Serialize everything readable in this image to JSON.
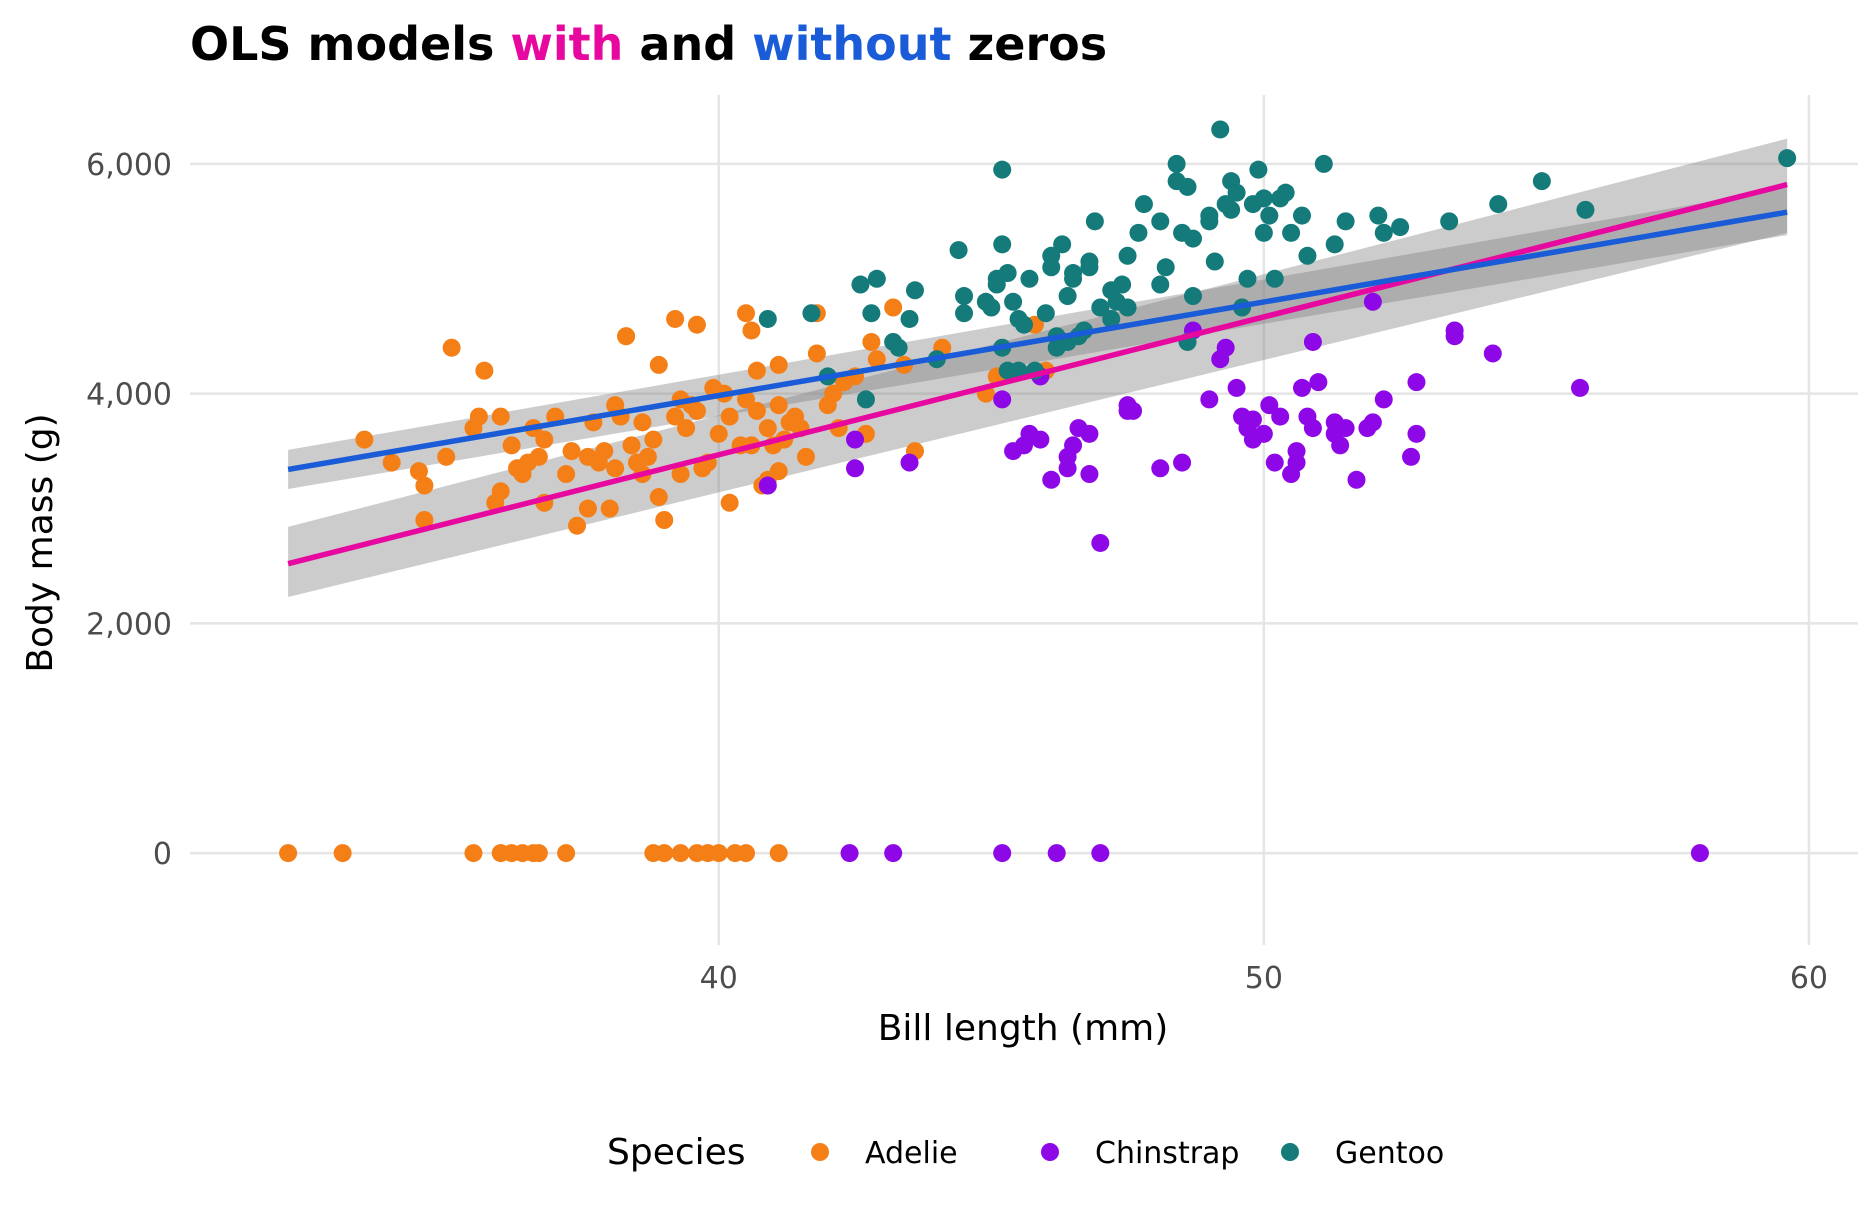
{
  "chart_data": {
    "type": "scatter",
    "title": {
      "segments": [
        {
          "text": "OLS",
          "color": "#000000"
        },
        {
          "text": "models",
          "color": "#000000"
        },
        {
          "text": "with",
          "color": "#E7099F"
        },
        {
          "text": "and",
          "color": "#000000"
        },
        {
          "text": "without",
          "color": "#1A5CD8"
        },
        {
          "text": "zeros",
          "color": "#000000"
        }
      ]
    },
    "xlabel": "Bill length (mm)",
    "ylabel": "Body mass (g)",
    "xlim": [
      30.3,
      60.9
    ],
    "ylim": [
      -800,
      6600
    ],
    "x_ticks": [
      40,
      50,
      60
    ],
    "x_tick_labels": [
      "40",
      "50",
      "60"
    ],
    "y_ticks": [
      0,
      2000,
      4000,
      6000
    ],
    "y_tick_labels": [
      "0",
      "2,000",
      "4,000",
      "6,000"
    ],
    "grid": true,
    "legend": {
      "title": "Species",
      "position": "bottom",
      "entries": [
        {
          "label": "Adelie",
          "color": "#F57F17"
        },
        {
          "label": "Chinstrap",
          "color": "#8E07E7"
        },
        {
          "label": "Gentoo",
          "color": "#147A7A"
        }
      ]
    },
    "series": [
      {
        "name": "Adelie",
        "color": "#F57F17",
        "points": [
          [
            32.1,
            0
          ],
          [
            33.1,
            0
          ],
          [
            35.5,
            0
          ],
          [
            36.0,
            0
          ],
          [
            36.2,
            0
          ],
          [
            36.4,
            0
          ],
          [
            36.6,
            0
          ],
          [
            36.7,
            0
          ],
          [
            37.2,
            0
          ],
          [
            38.8,
            0
          ],
          [
            39.0,
            0
          ],
          [
            39.3,
            0
          ],
          [
            39.6,
            0
          ],
          [
            39.8,
            0
          ],
          [
            40.0,
            0
          ],
          [
            40.3,
            0
          ],
          [
            40.5,
            0
          ],
          [
            41.1,
            0
          ],
          [
            33.5,
            3600
          ],
          [
            34.0,
            3400
          ],
          [
            34.5,
            3325
          ],
          [
            34.6,
            2900
          ],
          [
            34.6,
            3200
          ],
          [
            35.0,
            3450
          ],
          [
            35.1,
            4400
          ],
          [
            35.5,
            3700
          ],
          [
            35.6,
            3800
          ],
          [
            35.7,
            4200
          ],
          [
            35.9,
            3050
          ],
          [
            36.0,
            3800
          ],
          [
            36.0,
            3150
          ],
          [
            36.2,
            3550
          ],
          [
            36.3,
            3350
          ],
          [
            36.5,
            3400
          ],
          [
            36.6,
            3700
          ],
          [
            36.7,
            3450
          ],
          [
            36.8,
            3600
          ],
          [
            36.8,
            3050
          ],
          [
            37.0,
            3800
          ],
          [
            37.2,
            3300
          ],
          [
            37.3,
            3500
          ],
          [
            37.4,
            2850
          ],
          [
            37.6,
            3450
          ],
          [
            37.7,
            3750
          ],
          [
            37.8,
            3400
          ],
          [
            37.9,
            3500
          ],
          [
            38.0,
            3000
          ],
          [
            38.1,
            3900
          ],
          [
            38.2,
            3800
          ],
          [
            38.3,
            4500
          ],
          [
            38.4,
            3550
          ],
          [
            38.5,
            3400
          ],
          [
            38.6,
            3750
          ],
          [
            38.6,
            3300
          ],
          [
            38.7,
            3450
          ],
          [
            38.8,
            3600
          ],
          [
            38.9,
            4250
          ],
          [
            38.9,
            3100
          ],
          [
            39.0,
            2900
          ],
          [
            39.2,
            3800
          ],
          [
            39.3,
            3950
          ],
          [
            39.4,
            3700
          ],
          [
            39.5,
            3900
          ],
          [
            39.6,
            3850
          ],
          [
            39.7,
            3350
          ],
          [
            39.8,
            3400
          ],
          [
            40.0,
            3650
          ],
          [
            40.1,
            4000
          ],
          [
            40.2,
            3800
          ],
          [
            40.2,
            3050
          ],
          [
            40.4,
            3550
          ],
          [
            40.5,
            3950
          ],
          [
            40.6,
            4550
          ],
          [
            40.6,
            3550
          ],
          [
            40.7,
            4200
          ],
          [
            40.8,
            3200
          ],
          [
            40.9,
            3700
          ],
          [
            41.0,
            3550
          ],
          [
            41.1,
            4250
          ],
          [
            41.1,
            3900
          ],
          [
            41.2,
            3600
          ],
          [
            41.3,
            3750
          ],
          [
            41.4,
            3800
          ],
          [
            41.5,
            3700
          ],
          [
            41.6,
            3450
          ],
          [
            41.8,
            4350
          ],
          [
            42.0,
            3900
          ],
          [
            42.1,
            4000
          ],
          [
            42.2,
            3700
          ],
          [
            42.3,
            4100
          ],
          [
            42.5,
            4150
          ],
          [
            42.7,
            3650
          ],
          [
            42.8,
            4450
          ],
          [
            42.9,
            4300
          ],
          [
            43.2,
            4750
          ],
          [
            43.4,
            4250
          ],
          [
            43.6,
            3500
          ],
          [
            44.1,
            4400
          ],
          [
            44.9,
            4000
          ],
          [
            45.1,
            4150
          ],
          [
            45.8,
            4600
          ],
          [
            46.0,
            4200
          ],
          [
            39.6,
            4600
          ],
          [
            38.3,
            4500
          ],
          [
            41.8,
            4700
          ],
          [
            40.5,
            4700
          ],
          [
            39.2,
            4650
          ],
          [
            39.9,
            4050
          ],
          [
            40.7,
            3850
          ],
          [
            37.6,
            3000
          ],
          [
            36.4,
            3300
          ],
          [
            38.1,
            3350
          ],
          [
            41.1,
            3325
          ],
          [
            40.9,
            3250
          ],
          [
            39.3,
            3300
          ]
        ]
      },
      {
        "name": "Chinstrap",
        "color": "#8E07E7",
        "points": [
          [
            42.4,
            0
          ],
          [
            43.2,
            0
          ],
          [
            45.2,
            0
          ],
          [
            46.2,
            0
          ],
          [
            47.0,
            0
          ],
          [
            58.0,
            0
          ],
          [
            40.9,
            3200
          ],
          [
            42.5,
            3350
          ],
          [
            42.5,
            3600
          ],
          [
            43.5,
            3400
          ],
          [
            45.2,
            3950
          ],
          [
            45.4,
            3500
          ],
          [
            45.6,
            3550
          ],
          [
            45.7,
            3650
          ],
          [
            45.9,
            3600
          ],
          [
            46.1,
            3250
          ],
          [
            46.4,
            3450
          ],
          [
            46.5,
            3550
          ],
          [
            46.6,
            3700
          ],
          [
            46.8,
            3300
          ],
          [
            46.8,
            3650
          ],
          [
            47.0,
            2700
          ],
          [
            47.5,
            3900
          ],
          [
            47.6,
            3850
          ],
          [
            48.1,
            3350
          ],
          [
            48.5,
            3400
          ],
          [
            48.7,
            4550
          ],
          [
            49.0,
            3950
          ],
          [
            49.2,
            4300
          ],
          [
            49.5,
            4050
          ],
          [
            49.6,
            3800
          ],
          [
            49.7,
            3700
          ],
          [
            49.8,
            3600
          ],
          [
            50.0,
            3650
          ],
          [
            50.1,
            3900
          ],
          [
            50.2,
            3400
          ],
          [
            50.3,
            3800
          ],
          [
            50.5,
            3300
          ],
          [
            50.6,
            3400
          ],
          [
            50.7,
            4050
          ],
          [
            50.8,
            3800
          ],
          [
            50.9,
            3700
          ],
          [
            51.0,
            4100
          ],
          [
            51.3,
            3650
          ],
          [
            51.5,
            3700
          ],
          [
            51.7,
            3250
          ],
          [
            52.0,
            3750
          ],
          [
            52.2,
            3950
          ],
          [
            52.7,
            3450
          ],
          [
            52.8,
            4100
          ],
          [
            53.5,
            4500
          ],
          [
            54.2,
            4350
          ],
          [
            55.8,
            4050
          ],
          [
            49.3,
            4400
          ],
          [
            50.9,
            4450
          ],
          [
            51.4,
            3550
          ],
          [
            49.8,
            3775
          ],
          [
            47.5,
            3850
          ],
          [
            46.4,
            3350
          ],
          [
            52.0,
            4800
          ],
          [
            51.9,
            3700
          ],
          [
            53.5,
            4550
          ],
          [
            45.9,
            4150
          ],
          [
            52.8,
            3650
          ],
          [
            51.3,
            3750
          ],
          [
            50.6,
            3500
          ]
        ]
      },
      {
        "name": "Gentoo",
        "color": "#147A7A",
        "points": [
          [
            40.9,
            4650
          ],
          [
            41.7,
            4700
          ],
          [
            42.0,
            4150
          ],
          [
            42.6,
            4950
          ],
          [
            42.7,
            3950
          ],
          [
            42.8,
            4700
          ],
          [
            42.9,
            5000
          ],
          [
            43.2,
            4450
          ],
          [
            43.3,
            4400
          ],
          [
            43.5,
            4650
          ],
          [
            43.6,
            4900
          ],
          [
            44.0,
            4300
          ],
          [
            44.4,
            5250
          ],
          [
            44.5,
            4850
          ],
          [
            45.0,
            4750
          ],
          [
            45.1,
            5000
          ],
          [
            45.2,
            5300
          ],
          [
            45.2,
            4400
          ],
          [
            45.3,
            4200
          ],
          [
            45.4,
            4800
          ],
          [
            45.5,
            4650
          ],
          [
            45.7,
            5000
          ],
          [
            45.8,
            4200
          ],
          [
            46.0,
            4700
          ],
          [
            46.1,
            5100
          ],
          [
            46.2,
            4500
          ],
          [
            46.3,
            5300
          ],
          [
            46.4,
            4450
          ],
          [
            46.5,
            5000
          ],
          [
            46.7,
            4550
          ],
          [
            46.8,
            5150
          ],
          [
            46.9,
            5500
          ],
          [
            47.2,
            4900
          ],
          [
            47.3,
            4800
          ],
          [
            47.5,
            5200
          ],
          [
            47.7,
            5400
          ],
          [
            47.8,
            5650
          ],
          [
            48.1,
            5500
          ],
          [
            48.2,
            5100
          ],
          [
            48.4,
            5850
          ],
          [
            48.5,
            5400
          ],
          [
            48.6,
            4450
          ],
          [
            48.7,
            5350
          ],
          [
            49.0,
            5550
          ],
          [
            49.1,
            5150
          ],
          [
            49.2,
            6300
          ],
          [
            49.4,
            5850
          ],
          [
            49.5,
            5750
          ],
          [
            49.6,
            4750
          ],
          [
            49.8,
            5650
          ],
          [
            50.0,
            5400
          ],
          [
            50.1,
            5550
          ],
          [
            50.2,
            5000
          ],
          [
            50.4,
            5750
          ],
          [
            50.5,
            5400
          ],
          [
            50.7,
            5550
          ],
          [
            50.8,
            5200
          ],
          [
            51.1,
            6000
          ],
          [
            51.3,
            5300
          ],
          [
            51.5,
            5500
          ],
          [
            52.1,
            5550
          ],
          [
            52.2,
            5400
          ],
          [
            52.5,
            5450
          ],
          [
            53.4,
            5500
          ],
          [
            54.3,
            5650
          ],
          [
            55.1,
            5850
          ],
          [
            55.9,
            5600
          ],
          [
            59.6,
            6050
          ],
          [
            45.2,
            5950
          ],
          [
            48.4,
            6000
          ],
          [
            49.9,
            5950
          ],
          [
            48.6,
            5800
          ],
          [
            49.4,
            5600
          ],
          [
            46.5,
            5050
          ],
          [
            47.4,
            4950
          ],
          [
            47.5,
            4750
          ],
          [
            44.9,
            4800
          ],
          [
            46.1,
            5200
          ],
          [
            45.3,
            5050
          ],
          [
            46.4,
            4850
          ],
          [
            47.0,
            4750
          ],
          [
            48.7,
            4850
          ],
          [
            49.3,
            5650
          ],
          [
            50.3,
            5700
          ],
          [
            50.0,
            5700
          ],
          [
            49.0,
            5500
          ],
          [
            45.5,
            4200
          ],
          [
            44.5,
            4700
          ],
          [
            46.2,
            4400
          ],
          [
            47.2,
            4650
          ],
          [
            46.6,
            4500
          ],
          [
            48.1,
            4950
          ],
          [
            45.1,
            4950
          ],
          [
            45.6,
            4600
          ],
          [
            46.8,
            5100
          ],
          [
            49.7,
            5000
          ]
        ]
      }
    ],
    "fits": [
      {
        "label": "with",
        "color": "#E7099F",
        "x": [
          32.1,
          59.6
        ],
        "y": [
          2520,
          5820
        ],
        "ci_low": [
          2230,
          5400
        ],
        "ci_high": [
          2840,
          6220
        ]
      },
      {
        "label": "without",
        "color": "#1A5CD8",
        "x": [
          32.1,
          59.6
        ],
        "y": [
          3340,
          5580
        ],
        "ci_low": [
          3170,
          5380
        ],
        "ci_high": [
          3510,
          5790
        ]
      }
    ]
  }
}
